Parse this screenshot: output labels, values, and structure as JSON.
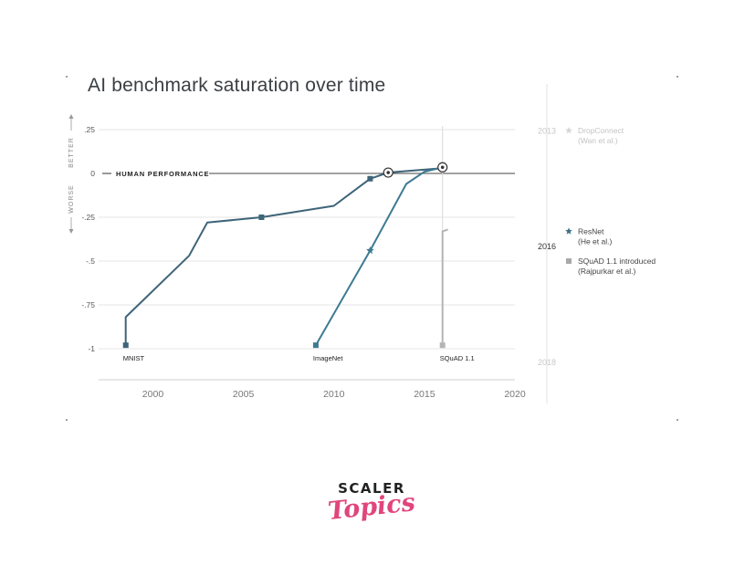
{
  "chart_data": {
    "type": "line",
    "title": "AI benchmark saturation over time",
    "xlim": [
      1997,
      2020
    ],
    "ylim": [
      -1,
      0.25
    ],
    "x_ticks": [
      2000,
      2005,
      2010,
      2015,
      2020
    ],
    "x_tick_labels": [
      "2000",
      "2005",
      "2010",
      "2015",
      "2020"
    ],
    "y_ticks": [
      0.25,
      0,
      -0.25,
      -0.5,
      -0.75,
      -1
    ],
    "y_tick_labels": [
      ".25",
      "0",
      "-.25",
      "-.5",
      "-.75",
      "-1"
    ],
    "direction_labels": {
      "up": "BETTER",
      "down": "WORSE"
    },
    "reference_line": {
      "y": 0,
      "label": "HUMAN PERFORMANCE"
    },
    "grid": true,
    "series": [
      {
        "name": "MNIST",
        "color": "#3e6478",
        "points": [
          [
            1998.5,
            -0.98
          ],
          [
            1998.5,
            -0.82
          ],
          [
            2002,
            -0.47
          ],
          [
            2003,
            -0.28
          ],
          [
            2006,
            -0.25
          ],
          [
            2010,
            -0.185
          ],
          [
            2012,
            -0.03
          ],
          [
            2013,
            0.005
          ],
          [
            2016,
            0.03
          ]
        ],
        "markers": [
          [
            1998.5,
            -0.98
          ],
          [
            2006,
            -0.25
          ],
          [
            2012,
            -0.03
          ]
        ],
        "circle": [
          2013,
          0.005
        ]
      },
      {
        "name": "ImageNet",
        "color": "#3e7a92",
        "points": [
          [
            2009,
            -0.98
          ],
          [
            2012,
            -0.44
          ],
          [
            2014,
            -0.06
          ],
          [
            2015,
            0.01
          ],
          [
            2016,
            0.035
          ]
        ],
        "markers": [
          [
            2009,
            -0.98
          ]
        ],
        "stars": [
          [
            2012,
            -0.44
          ]
        ],
        "circle": [
          2016,
          0.035
        ]
      },
      {
        "name": "SQuAD 1.1",
        "color": "#b4b4b4",
        "points": [
          [
            2016,
            -0.98
          ],
          [
            2016,
            -0.33
          ],
          [
            2016.3,
            -0.32
          ]
        ],
        "markers": [
          [
            2016,
            -0.98
          ]
        ]
      }
    ],
    "timeline": {
      "years": [
        {
          "label": "2013",
          "y": 0.245,
          "highlight": false
        },
        {
          "label": "2016",
          "y": -0.415,
          "highlight": true
        },
        {
          "label": "2018",
          "y": -1.075,
          "highlight": false
        }
      ],
      "events": [
        {
          "lines": [
            "DropConnect",
            "(Wan et al.)"
          ],
          "y": 0.245,
          "symbol": "star",
          "color": "#d6d6d6",
          "text_color": "#c3c3c3"
        },
        {
          "lines": [
            "ResNet",
            "(He et al.)"
          ],
          "y": -0.33,
          "symbol": "star",
          "color": "#3e6f86",
          "text_color": "#444444"
        },
        {
          "lines": [
            "SQuAD 1.1 introduced",
            "(Rajpurkar et al.)"
          ],
          "y": -0.5,
          "symbol": "square",
          "color": "#a9a9a9",
          "text_color": "#444444"
        }
      ]
    }
  },
  "branding": {
    "line1": "SCALER",
    "line2": "Topics"
  }
}
